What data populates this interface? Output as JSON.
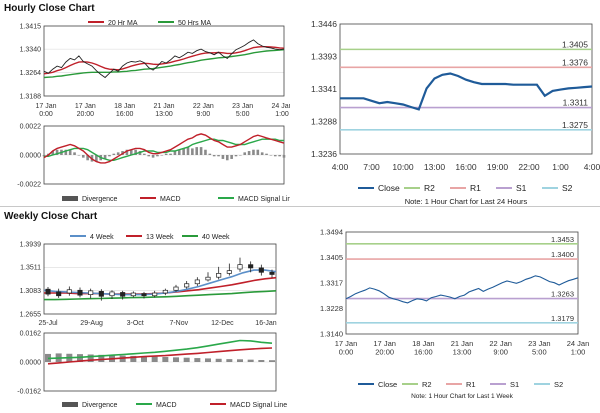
{
  "sections": {
    "hourly_title": "Hourly Close Chart",
    "weekly_title": "Weekly Close Chart"
  },
  "colors": {
    "close": "#1f5b99",
    "ma_short": "#c0202a",
    "ma_long": "#2a9a3a",
    "macd_line": "#c0202a",
    "signal_line": "#2aa84a",
    "divergence": "#8a8a8a",
    "r2": "#a7d08a",
    "r1": "#e8a5a5",
    "s1": "#b9a0d0",
    "s2": "#9fd3e0",
    "week4": "#5b8fc8",
    "week13": "#c0202a",
    "week40": "#2a9a3a",
    "grid": "#d9d9d9",
    "axis": "#444444",
    "candle": "#222222"
  },
  "chart_data": [
    {
      "id": "hourly_price",
      "type": "line",
      "legend": [
        "20 Hr MA",
        "50 Hrs MA"
      ],
      "y_ticks": [
        "1.3415",
        "1.3340",
        "1.3264",
        "1.3188"
      ],
      "ylim": [
        1.3188,
        1.3415
      ],
      "x_ticks": [
        [
          "17 Jan",
          "0:00"
        ],
        [
          "17 Jan",
          "20:00"
        ],
        [
          "18 Jan",
          "16:00"
        ],
        [
          "21 Jan",
          "13:00"
        ],
        [
          "22 Jan",
          "9:00"
        ],
        [
          "23 Jan",
          "5:00"
        ],
        [
          "24 Jan",
          "1:00"
        ]
      ],
      "n": 56,
      "close": [
        1.3268,
        1.3262,
        1.3275,
        1.3285,
        1.328,
        1.3298,
        1.331,
        1.3305,
        1.3318,
        1.33,
        1.3292,
        1.3285,
        1.327,
        1.3258,
        1.3248,
        1.3262,
        1.3275,
        1.3268,
        1.3285,
        1.3295,
        1.33,
        1.3298,
        1.3302,
        1.3296,
        1.328,
        1.3272,
        1.3285,
        1.33,
        1.3295,
        1.3305,
        1.3318,
        1.3312,
        1.332,
        1.333,
        1.3326,
        1.3335,
        1.334,
        1.3332,
        1.3328,
        1.3322,
        1.333,
        1.3318,
        1.331,
        1.3325,
        1.3338,
        1.3345,
        1.3352,
        1.3362,
        1.337,
        1.3358,
        1.335,
        1.3346,
        1.3344,
        1.334,
        1.3338,
        1.334
      ],
      "ma_short": [
        1.326,
        1.3262,
        1.3265,
        1.327,
        1.3274,
        1.328,
        1.3287,
        1.3293,
        1.3298,
        1.3299,
        1.3298,
        1.3295,
        1.329,
        1.3284,
        1.3278,
        1.3275,
        1.3274,
        1.3273,
        1.3276,
        1.328,
        1.3285,
        1.3289,
        1.3292,
        1.3294,
        1.3293,
        1.3291,
        1.329,
        1.3292,
        1.3294,
        1.3297,
        1.3301,
        1.3304,
        1.3308,
        1.3313,
        1.3317,
        1.3321,
        1.3325,
        1.3327,
        1.3328,
        1.3328,
        1.3329,
        1.3328,
        1.3326,
        1.3326,
        1.3328,
        1.3331,
        1.3335,
        1.334,
        1.3345,
        1.3347,
        1.3348,
        1.3348,
        1.3347,
        1.3346,
        1.3344,
        1.3343
      ],
      "ma_long": [
        1.3248,
        1.3249,
        1.325,
        1.3252,
        1.3253,
        1.3255,
        1.3257,
        1.3259,
        1.3261,
        1.3263,
        1.3264,
        1.3265,
        1.3265,
        1.3265,
        1.3265,
        1.3265,
        1.3266,
        1.3266,
        1.3267,
        1.3268,
        1.327,
        1.3271,
        1.3273,
        1.3275,
        1.3276,
        1.3277,
        1.3279,
        1.3281,
        1.3283,
        1.3285,
        1.3288,
        1.329,
        1.3293,
        1.3296,
        1.3298,
        1.3301,
        1.3304,
        1.3306,
        1.3308,
        1.331,
        1.3312,
        1.3313,
        1.3314,
        1.3316,
        1.3318,
        1.332,
        1.3322,
        1.3325,
        1.3328,
        1.333,
        1.3332,
        1.3334,
        1.3335,
        1.3336,
        1.3337,
        1.3338
      ]
    },
    {
      "id": "hourly_macd",
      "type": "bar",
      "legend": [
        "Divergence",
        "MACD",
        "MACD Signal Line"
      ],
      "y_ticks": [
        "0.0022",
        "0.0000",
        "-0.0022"
      ],
      "ylim": [
        -0.0022,
        0.0022
      ],
      "macd": [
        -0.0002,
        0.0,
        0.0003,
        0.0005,
        0.0006,
        0.0007,
        0.0008,
        0.0007,
        0.0005,
        0.0003,
        0.0,
        -0.0003,
        -0.0005,
        -0.0006,
        -0.0006,
        -0.0005,
        -0.0003,
        -0.0001,
        0.0001,
        0.0003,
        0.0004,
        0.0005,
        0.0005,
        0.0004,
        0.0002,
        0.0001,
        0.0001,
        0.0002,
        0.0003,
        0.0004,
        0.0006,
        0.0008,
        0.001,
        0.0012,
        0.0013,
        0.0015,
        0.0016,
        0.0015,
        0.0013,
        0.0011,
        0.001,
        0.0008,
        0.0006,
        0.0006,
        0.0007,
        0.0008,
        0.001,
        0.0012,
        0.0014,
        0.0015,
        0.0014,
        0.0013,
        0.0012,
        0.0011,
        0.001,
        0.0009
      ],
      "signal": [
        -0.0001,
        -0.0001,
        0.0,
        0.0001,
        0.0002,
        0.0003,
        0.0004,
        0.0005,
        0.0005,
        0.0005,
        0.0004,
        0.0002,
        0.0,
        -0.0002,
        -0.0003,
        -0.0004,
        -0.0004,
        -0.0003,
        -0.0002,
        -0.0001,
        0.0,
        0.0001,
        0.0002,
        0.0003,
        0.0003,
        0.0003,
        0.0002,
        0.0002,
        0.0002,
        0.0003,
        0.0003,
        0.0004,
        0.0005,
        0.0006,
        0.0008,
        0.0009,
        0.001,
        0.0011,
        0.0012,
        0.0012,
        0.0011,
        0.0011,
        0.001,
        0.0009,
        0.0008,
        0.0008,
        0.0008,
        0.0009,
        0.001,
        0.0011,
        0.0012,
        0.0012,
        0.0012,
        0.0012,
        0.0011,
        0.0011
      ]
    },
    {
      "id": "hourly_levels",
      "type": "line",
      "title_note": "Note: 1 Hour Chart for Last 24 Hours",
      "legend": [
        "Close",
        "R2",
        "R1",
        "S1",
        "S2"
      ],
      "y_ticks": [
        "1.3446",
        "1.3393",
        "1.3341",
        "1.3288",
        "1.3236"
      ],
      "ylim": [
        1.3236,
        1.3446
      ],
      "x_ticks": [
        "4:00",
        "7:00",
        "10:00",
        "13:00",
        "16:00",
        "19:00",
        "22:00",
        "1:00",
        "4:00"
      ],
      "levels": {
        "R2": 1.3405,
        "R1": 1.3376,
        "S1": 1.3311,
        "S2": 1.3275
      },
      "level_labels": {
        "R2": "1.3405",
        "R1": "1.3376",
        "S1": "1.3311",
        "S2": "1.3275"
      },
      "close": [
        1.3326,
        1.3326,
        1.3326,
        1.3326,
        1.3322,
        1.3318,
        1.332,
        1.3318,
        1.3316,
        1.3312,
        1.3308,
        1.3342,
        1.3358,
        1.3364,
        1.3366,
        1.3362,
        1.3356,
        1.3352,
        1.3349,
        1.3349,
        1.3349,
        1.3349,
        1.3348,
        1.3348,
        1.3348,
        1.3348,
        1.333,
        1.3338,
        1.334,
        1.3342,
        1.3343,
        1.3344,
        1.3345
      ]
    },
    {
      "id": "weekly_price",
      "type": "line",
      "legend": [
        "4 Week",
        "13 Week",
        "40 Week"
      ],
      "y_ticks": [
        "1.3939",
        "1.3511",
        "1.3083",
        "1.2655"
      ],
      "ylim": [
        1.2655,
        1.3939
      ],
      "x_ticks": [
        "25-Jul",
        "29-Aug",
        "3-Oct",
        "7-Nov",
        "12-Dec",
        "16-Jan"
      ],
      "candles": [
        [
          1.311,
          1.302,
          1.315,
          1.298
        ],
        [
          1.306,
          1.299,
          1.312,
          1.295
        ],
        [
          1.304,
          1.31,
          1.316,
          1.299
        ],
        [
          1.309,
          1.3,
          1.314,
          1.296
        ],
        [
          1.301,
          1.308,
          1.312,
          1.294
        ],
        [
          1.307,
          1.298,
          1.311,
          1.29
        ],
        [
          1.299,
          1.306,
          1.309,
          1.293
        ],
        [
          1.305,
          1.298,
          1.308,
          1.292
        ],
        [
          1.299,
          1.304,
          1.307,
          1.296
        ],
        [
          1.303,
          1.299,
          1.306,
          1.294
        ],
        [
          1.299,
          1.304,
          1.308,
          1.296
        ],
        [
          1.304,
          1.309,
          1.312,
          1.3
        ],
        [
          1.309,
          1.315,
          1.319,
          1.306
        ],
        [
          1.315,
          1.321,
          1.326,
          1.312
        ],
        [
          1.321,
          1.328,
          1.333,
          1.317
        ],
        [
          1.328,
          1.333,
          1.342,
          1.325
        ],
        [
          1.333,
          1.34,
          1.352,
          1.329
        ],
        [
          1.34,
          1.345,
          1.358,
          1.336
        ],
        [
          1.348,
          1.356,
          1.369,
          1.343
        ],
        [
          1.356,
          1.35,
          1.362,
          1.342
        ],
        [
          1.35,
          1.342,
          1.356,
          1.336
        ],
        [
          1.342,
          1.338,
          1.347,
          1.332
        ]
      ],
      "week4": [
        1.309,
        1.307,
        1.306,
        1.305,
        1.304,
        1.303,
        1.302,
        1.301,
        1.301,
        1.301,
        1.302,
        1.304,
        1.307,
        1.311,
        1.316,
        1.322,
        1.328,
        1.334,
        1.341,
        1.346,
        1.346,
        1.343
      ],
      "week13": [
        1.304,
        1.304,
        1.304,
        1.303,
        1.303,
        1.303,
        1.302,
        1.302,
        1.302,
        1.302,
        1.303,
        1.304,
        1.306,
        1.308,
        1.31,
        1.313,
        1.316,
        1.319,
        1.323,
        1.327,
        1.33,
        1.332
      ],
      "week40": [
        1.292,
        1.292,
        1.2925,
        1.293,
        1.2935,
        1.294,
        1.2945,
        1.295,
        1.2955,
        1.296,
        1.2965,
        1.297,
        1.298,
        1.299,
        1.3,
        1.301,
        1.302,
        1.303,
        1.3045,
        1.306,
        1.307,
        1.308
      ]
    },
    {
      "id": "weekly_macd",
      "type": "bar",
      "legend": [
        "Divergence",
        "MACD",
        "MACD Signal Line"
      ],
      "y_ticks": [
        "0.0162",
        "0.0000",
        "-0.0162"
      ],
      "ylim": [
        -0.0162,
        0.0162
      ],
      "macd": [
        0.002,
        0.0022,
        0.0024,
        0.0026,
        0.003,
        0.0034,
        0.0038,
        0.0042,
        0.0046,
        0.005,
        0.0054,
        0.006,
        0.0066,
        0.0072,
        0.008,
        0.009,
        0.01,
        0.011,
        0.012,
        0.0118,
        0.011,
        0.0105
      ],
      "signal": [
        -0.001,
        -0.0005,
        0.0,
        0.0005,
        0.001,
        0.0014,
        0.0018,
        0.0022,
        0.0026,
        0.003,
        0.0033,
        0.0036,
        0.004,
        0.0044,
        0.0048,
        0.0053,
        0.0058,
        0.0063,
        0.0068,
        0.0072,
        0.0076,
        0.0078
      ],
      "divergence": [
        0.0045,
        0.0048,
        0.0046,
        0.0044,
        0.0042,
        0.004,
        0.0038,
        0.0036,
        0.0034,
        0.0032,
        0.003,
        0.0028,
        0.0026,
        0.0024,
        0.0022,
        0.002,
        0.0018,
        0.0016,
        0.0015,
        0.0013,
        0.0011,
        0.001
      ]
    },
    {
      "id": "weekly_levels",
      "type": "line",
      "title_note": "Note: 1 Hour Chart for Last 1 Week",
      "legend": [
        "Close",
        "R2",
        "R1",
        "S1",
        "S2"
      ],
      "y_ticks": [
        "1.3494",
        "1.3405",
        "1.3317",
        "1.3228",
        "1.3140"
      ],
      "ylim": [
        1.314,
        1.3494
      ],
      "x_ticks": [
        [
          "17 Jan",
          "0:00"
        ],
        [
          "17 Jan",
          "20:00"
        ],
        [
          "18 Jan",
          "16:00"
        ],
        [
          "21 Jan",
          "13:00"
        ],
        [
          "22 Jan",
          "9:00"
        ],
        [
          "23 Jan",
          "5:00"
        ],
        [
          "24 Jan",
          "1:00"
        ]
      ],
      "levels": {
        "R2": 1.3453,
        "R1": 1.34,
        "S1": 1.3263,
        "S2": 1.3179
      },
      "level_labels": {
        "R2": "1.3453",
        "R1": "1.3400",
        "S1": "1.3263",
        "S2": "1.3179"
      },
      "close": [
        1.3262,
        1.327,
        1.328,
        1.3286,
        1.3292,
        1.33,
        1.3296,
        1.329,
        1.328,
        1.3268,
        1.3262,
        1.3258,
        1.3252,
        1.3248,
        1.3256,
        1.3262,
        1.326,
        1.3255,
        1.3266,
        1.327,
        1.3275,
        1.3272,
        1.3268,
        1.3262,
        1.327,
        1.3275,
        1.3286,
        1.3292,
        1.3298,
        1.3288,
        1.3296,
        1.3302,
        1.331,
        1.3318,
        1.3324,
        1.332,
        1.3316,
        1.3322,
        1.333,
        1.3335,
        1.3342,
        1.3338,
        1.333,
        1.3322,
        1.3318,
        1.331,
        1.3318,
        1.3325,
        1.333,
        1.3335
      ]
    }
  ]
}
